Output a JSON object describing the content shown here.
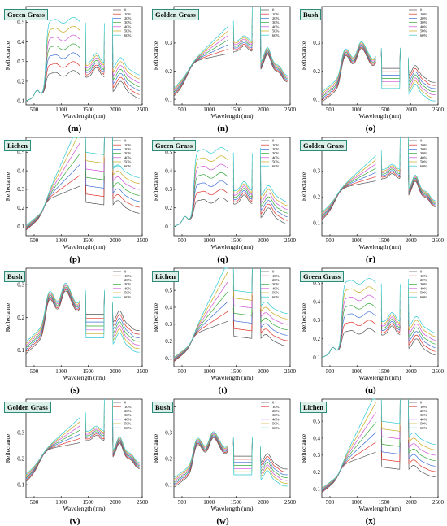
{
  "colors": {
    "series": [
      "#555555",
      "#e0322a",
      "#3f6fd6",
      "#34a83a",
      "#d04fd6",
      "#c9a91e",
      "#2ec9d3"
    ]
  },
  "legend_labels": [
    "0",
    "10%",
    "20%",
    "30%",
    "40%",
    "50%",
    "60%"
  ],
  "x_axis": {
    "title": "Wavelength (nm)",
    "ticks": [
      500,
      1000,
      1500,
      2000,
      2500
    ],
    "range": [
      350,
      2500
    ],
    "bands": [
      [
        350,
        1350
      ],
      [
        1450,
        1800
      ],
      [
        1950,
        2450
      ]
    ]
  },
  "y_axis_title": "Reflectance",
  "chart_data": [
    {
      "id": "m",
      "letter": "(m)",
      "type": "line",
      "title": "Green Grass",
      "vegetation": "green",
      "ylim": [
        0.08,
        0.58
      ],
      "yticks": [
        0.1,
        0.2,
        0.3,
        0.4,
        0.5
      ],
      "series_names": [
        "0",
        "10%",
        "20%",
        "30%",
        "40%",
        "50%",
        "60%"
      ]
    },
    {
      "id": "n",
      "letter": "(n)",
      "type": "line",
      "title": "Golden Grass",
      "vegetation": "golden",
      "ylim": [
        0.08,
        0.43
      ],
      "yticks": [
        0.1,
        0.2,
        0.3,
        0.4
      ],
      "series_names": [
        "0",
        "10%",
        "20%",
        "30%",
        "40%",
        "50%",
        "60%"
      ]
    },
    {
      "id": "o",
      "letter": "(o)",
      "type": "line",
      "title": "Bush",
      "vegetation": "bush",
      "ylim": [
        0.08,
        0.43
      ],
      "yticks": [
        0.1,
        0.2,
        0.3,
        0.4
      ],
      "series_names": [
        "0",
        "10%",
        "20%",
        "30%",
        "40%",
        "50%",
        "60%"
      ]
    },
    {
      "id": "p",
      "letter": "(p)",
      "type": "line",
      "title": "Lichen",
      "vegetation": "lichen",
      "ylim": [
        0.05,
        0.58
      ],
      "yticks": [
        0.1,
        0.2,
        0.3,
        0.4,
        0.5
      ],
      "series_names": [
        "0",
        "10%",
        "20%",
        "30%",
        "40%",
        "50%",
        "60%"
      ]
    },
    {
      "id": "q",
      "letter": "(q)",
      "type": "line",
      "title": "Green Grass",
      "vegetation": "green",
      "ylim": [
        0.05,
        0.58
      ],
      "yticks": [
        0.1,
        0.2,
        0.3,
        0.4,
        0.5
      ],
      "series_names": [
        "0",
        "10%",
        "20%",
        "30%",
        "40%",
        "50%",
        "60%"
      ]
    },
    {
      "id": "r",
      "letter": "(r)",
      "type": "line",
      "title": "Golden Grass",
      "vegetation": "golden",
      "ylim": [
        0.05,
        0.43
      ],
      "yticks": [
        0.1,
        0.2,
        0.3,
        0.4
      ],
      "series_names": [
        "0",
        "10%",
        "20%",
        "30%",
        "40%",
        "50%",
        "60%"
      ]
    },
    {
      "id": "s",
      "letter": "(s)",
      "type": "line",
      "title": "Bush",
      "vegetation": "bush",
      "ylim": [
        0.05,
        0.35
      ],
      "yticks": [
        0.1,
        0.2,
        0.3
      ],
      "series_names": [
        "0",
        "10%",
        "20%",
        "30%",
        "40%",
        "50%",
        "60%"
      ]
    },
    {
      "id": "t",
      "letter": "(t)",
      "type": "line",
      "title": "Lichen",
      "vegetation": "lichen",
      "ylim": [
        0.05,
        0.63
      ],
      "yticks": [
        0.1,
        0.2,
        0.3,
        0.4,
        0.5,
        0.6
      ],
      "series_names": [
        "0",
        "10%",
        "20%",
        "30%",
        "40%",
        "50%",
        "60%"
      ]
    },
    {
      "id": "u",
      "letter": "(u)",
      "type": "line",
      "title": "Green Grass",
      "vegetation": "green",
      "ylim": [
        0.05,
        0.58
      ],
      "yticks": [
        0.1,
        0.2,
        0.3,
        0.4,
        0.5
      ],
      "series_names": [
        "0",
        "10%",
        "20%",
        "30%",
        "40%",
        "50%",
        "60%"
      ]
    },
    {
      "id": "v",
      "letter": "(v)",
      "type": "line",
      "title": "Golden Grass",
      "vegetation": "golden",
      "ylim": [
        0.05,
        0.43
      ],
      "yticks": [
        0.1,
        0.2,
        0.3,
        0.4
      ],
      "series_names": [
        "0",
        "10%",
        "20%",
        "30%",
        "40%",
        "50%",
        "60%"
      ]
    },
    {
      "id": "w",
      "letter": "(w)",
      "type": "line",
      "title": "Bush",
      "vegetation": "bush",
      "ylim": [
        0.05,
        0.43
      ],
      "yticks": [
        0.1,
        0.2,
        0.3,
        0.4
      ],
      "series_names": [
        "0",
        "10%",
        "20%",
        "30%",
        "40%",
        "50%",
        "60%"
      ]
    },
    {
      "id": "x",
      "letter": "(x)",
      "type": "line",
      "title": "Lichen",
      "vegetation": "lichen",
      "ylim": [
        0.05,
        0.63
      ],
      "yticks": [
        0.1,
        0.2,
        0.3,
        0.4,
        0.5,
        0.6
      ],
      "series_names": [
        "0",
        "10%",
        "20%",
        "30%",
        "40%",
        "50%",
        "60%"
      ]
    }
  ]
}
